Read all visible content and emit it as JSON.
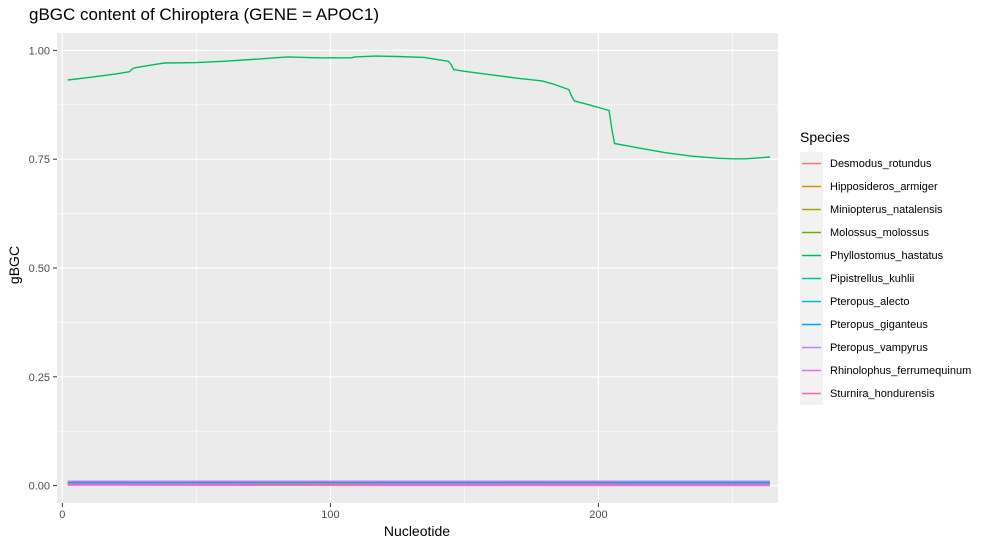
{
  "chart_data": {
    "type": "line",
    "title": "gBGC content of Chiroptera (GENE = APOC1)",
    "xlabel": "Nucleotide",
    "ylabel": "gBGC",
    "xlim": [
      -2,
      267
    ],
    "ylim": [
      -0.04,
      1.04
    ],
    "x_ticks": [
      0,
      100,
      200
    ],
    "x_tick_labels": [
      "0",
      "100",
      "200"
    ],
    "y_ticks": [
      0,
      0.25,
      0.5,
      0.75,
      1.0
    ],
    "y_tick_labels": [
      "0.00",
      "0.25",
      "0.50",
      "0.75",
      "1.00"
    ],
    "grid": true,
    "legend": {
      "title": "Species",
      "position": "right"
    },
    "series": [
      {
        "name": "Desmodus_rotundus",
        "color": "#F8766D",
        "points": [
          [
            2,
            0.002
          ],
          [
            264,
            0.002
          ]
        ]
      },
      {
        "name": "Hipposideros_armiger",
        "color": "#DB8E00",
        "points": [
          [
            2,
            0.003
          ],
          [
            264,
            0.003
          ]
        ]
      },
      {
        "name": "Miniopterus_natalensis",
        "color": "#AEA200",
        "points": [
          [
            2,
            0.004
          ],
          [
            264,
            0.004
          ]
        ]
      },
      {
        "name": "Molossus_molossus",
        "color": "#64B200",
        "points": [
          [
            2,
            0.005
          ],
          [
            264,
            0.005
          ]
        ]
      },
      {
        "name": "Phyllostomus_hastatus",
        "color": "#00BD5C",
        "points": [
          [
            2,
            0.932
          ],
          [
            10,
            0.938
          ],
          [
            20,
            0.946
          ],
          [
            25,
            0.951
          ],
          [
            26,
            0.957
          ],
          [
            27,
            0.96
          ],
          [
            32,
            0.965
          ],
          [
            38,
            0.971
          ],
          [
            50,
            0.972
          ],
          [
            60,
            0.975
          ],
          [
            75,
            0.981
          ],
          [
            84,
            0.985
          ],
          [
            95,
            0.983
          ],
          [
            108,
            0.983
          ],
          [
            109,
            0.985
          ],
          [
            117,
            0.987
          ],
          [
            125,
            0.986
          ],
          [
            135,
            0.984
          ],
          [
            144,
            0.975
          ],
          [
            145,
            0.968
          ],
          [
            146,
            0.956
          ],
          [
            150,
            0.952
          ],
          [
            160,
            0.944
          ],
          [
            170,
            0.936
          ],
          [
            179,
            0.93
          ],
          [
            183,
            0.923
          ],
          [
            189,
            0.91
          ],
          [
            190,
            0.895
          ],
          [
            191,
            0.884
          ],
          [
            197,
            0.874
          ],
          [
            204,
            0.862
          ],
          [
            205,
            0.82
          ],
          [
            206,
            0.786
          ],
          [
            215,
            0.776
          ],
          [
            225,
            0.765
          ],
          [
            235,
            0.757
          ],
          [
            245,
            0.752
          ],
          [
            250,
            0.751
          ],
          [
            255,
            0.751
          ],
          [
            264,
            0.755
          ]
        ]
      },
      {
        "name": "Pipistrellus_kuhlii",
        "color": "#00C1A7",
        "points": [
          [
            2,
            0.006
          ],
          [
            264,
            0.006
          ]
        ]
      },
      {
        "name": "Pteropus_alecto",
        "color": "#00BADE",
        "points": [
          [
            2,
            0.007
          ],
          [
            264,
            0.007
          ]
        ]
      },
      {
        "name": "Pteropus_giganteus",
        "color": "#00A6FF",
        "points": [
          [
            2,
            0.008
          ],
          [
            264,
            0.008
          ]
        ]
      },
      {
        "name": "Pteropus_vampyrus",
        "color": "#B385FF",
        "points": [
          [
            2,
            0.01
          ],
          [
            264,
            0.01
          ]
        ]
      },
      {
        "name": "Rhinolophus_ferrumequinum",
        "color": "#EF67EB",
        "points": [
          [
            2,
            0.001
          ],
          [
            264,
            0.0
          ]
        ]
      },
      {
        "name": "Sturnira_hondurensis",
        "color": "#FF63B6",
        "points": [
          [
            2,
            0.004
          ],
          [
            205,
            0.004
          ],
          [
            206,
            0.003
          ],
          [
            264,
            0.003
          ]
        ]
      }
    ]
  }
}
